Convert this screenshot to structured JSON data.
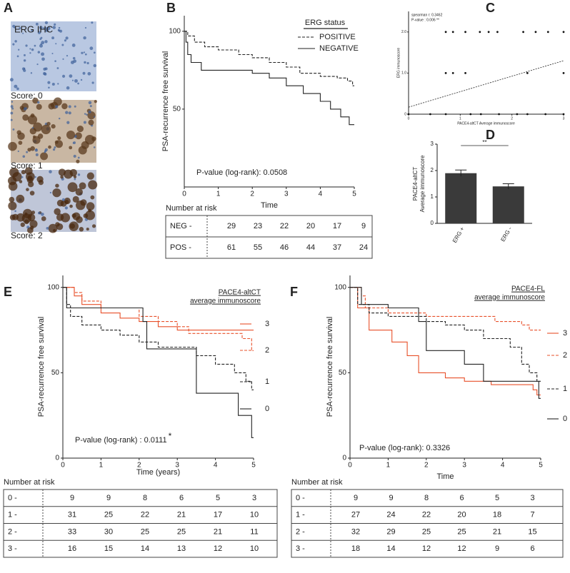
{
  "panel_labels": [
    "A",
    "B",
    "C",
    "D",
    "E",
    "F"
  ],
  "ihc": {
    "title": "ERG IHC",
    "scores": [
      "Score: 0",
      "Score: 1",
      "Score: 2"
    ]
  },
  "chart_data": [
    {
      "type": "km",
      "xlabel": "Time",
      "ylabel": "PSA-recurrence free survival",
      "legend_title": [
        "ERG status"
      ],
      "annotation": "P-value (log-rank): 0.0508",
      "xlim": [
        0,
        5
      ],
      "ylim": [
        0,
        110
      ],
      "xticks": [
        0,
        1,
        2,
        3,
        4,
        5
      ],
      "yticks": [
        50,
        100
      ],
      "series": [
        {
          "name": "POSITIVE",
          "color": "#222222",
          "style": "dashed",
          "x": [
            0,
            0.1,
            0.1,
            0.3,
            0.3,
            0.6,
            0.6,
            1,
            1,
            1.6,
            1.6,
            2,
            2,
            2.5,
            2.5,
            3,
            3,
            3.4,
            3.4,
            4,
            4,
            4.5,
            4.5,
            4.8,
            4.8,
            4.95,
            4.95,
            5
          ],
          "values": [
            100,
            100,
            97,
            97,
            93,
            93,
            90,
            90,
            88,
            88,
            85,
            85,
            83,
            83,
            80,
            80,
            77,
            77,
            73,
            73,
            71,
            71,
            70,
            70,
            68,
            68,
            65,
            65
          ]
        },
        {
          "name": "NEGATIVE",
          "color": "#222222",
          "style": "solid",
          "x": [
            0,
            0.05,
            0.05,
            0.1,
            0.1,
            0.2,
            0.2,
            0.5,
            0.5,
            2,
            2,
            2.5,
            2.5,
            3,
            3,
            3.5,
            3.5,
            4,
            4,
            4.3,
            4.3,
            4.6,
            4.6,
            4.85,
            4.85,
            5
          ],
          "values": [
            100,
            100,
            93,
            93,
            85,
            85,
            80,
            80,
            75,
            75,
            73,
            73,
            70,
            70,
            65,
            65,
            60,
            60,
            55,
            55,
            50,
            50,
            45,
            45,
            40,
            40
          ]
        }
      ]
    },
    {
      "type": "scatter",
      "xlabel": "PACE4-altCT Average immunoscore",
      "ylabel": "ERG immunoscore",
      "annotations": [
        "spearman r: 0.3462",
        "P-value : 0.006 **"
      ],
      "xlim": [
        0,
        3
      ],
      "ylim": [
        0,
        2.5
      ],
      "xticks": [
        0,
        1,
        2,
        3
      ],
      "yticks": [
        0,
        {
          "value": 1,
          "label": "1.0"
        },
        {
          "value": 2,
          "label": "2.0"
        }
      ],
      "series": [
        {
          "color": "#111111",
          "x": [
            0.72,
            0.86,
            1.1,
            1.38,
            1.55,
            1.72,
            2.22,
            2.46,
            2.7,
            3.0,
            0.72,
            0.86,
            1.1,
            2.3,
            3.0,
            0.0,
            0.42,
            0.72,
            1.2,
            1.4,
            1.75,
            2.1,
            2.3,
            2.65,
            3.0
          ],
          "values": [
            2,
            2,
            2,
            2,
            2,
            2,
            2,
            2,
            2,
            2,
            1,
            1,
            1,
            1,
            1,
            0,
            0,
            0,
            0,
            0,
            0,
            0,
            0,
            0,
            0
          ]
        }
      ],
      "fit": {
        "x": [
          0,
          3
        ],
        "values": [
          0.17,
          1.3
        ]
      }
    },
    {
      "type": "bar",
      "ylabel": [
        "PACE4-altCT",
        "Average immunoscore"
      ],
      "categories": [
        "ERG +",
        "ERG -"
      ],
      "values": [
        1.9,
        1.4
      ],
      "errors": [
        0.12,
        0.1
      ],
      "color": "#3a3a3a",
      "significance": "**",
      "ylim": [
        0,
        3
      ],
      "yticks": [
        0,
        1,
        2,
        3
      ]
    },
    {
      "type": "km",
      "xlabel": "Time (years)",
      "ylabel": "PSA-recurrence free survival",
      "legend_title": [
        "PACE4-altCT",
        "average immunoscore"
      ],
      "annotation": "P-value (log-rank) : 0.0111",
      "significance": "*",
      "xlim": [
        0,
        5
      ],
      "ylim": [
        0,
        107
      ],
      "xticks": [
        0,
        1,
        2,
        3,
        4,
        5
      ],
      "yticks": [
        0,
        50,
        100
      ],
      "series": [
        {
          "name": "3",
          "color": "#e8502a",
          "style": "solid",
          "x": [
            0,
            0.3,
            0.3,
            0.5,
            0.5,
            1,
            1,
            1.5,
            1.5,
            2,
            2,
            2.5,
            2.5,
            3,
            3,
            5
          ],
          "values": [
            100,
            100,
            95,
            95,
            90,
            90,
            85,
            85,
            82,
            82,
            80,
            80,
            77,
            77,
            75,
            75
          ]
        },
        {
          "name": "2",
          "color": "#e8502a",
          "style": "dashed",
          "x": [
            0,
            0.3,
            0.3,
            0.5,
            0.5,
            1,
            1,
            2,
            2,
            2.5,
            2.5,
            3,
            3,
            3.3,
            3.3,
            4.7,
            4.7,
            4.95,
            4.95,
            5
          ],
          "values": [
            100,
            100,
            97,
            97,
            92,
            92,
            88,
            88,
            83,
            83,
            80,
            80,
            77,
            77,
            73,
            73,
            70,
            70,
            63,
            63
          ]
        },
        {
          "name": "1",
          "color": "#222222",
          "style": "dashed",
          "x": [
            0,
            0.1,
            0.1,
            0.2,
            0.2,
            0.5,
            0.5,
            1,
            1,
            1.5,
            1.5,
            2,
            2,
            2.5,
            2.5,
            3.5,
            3.5,
            4,
            4,
            4.5,
            4.5,
            4.8,
            4.8,
            4.95,
            4.95,
            5
          ],
          "values": [
            100,
            100,
            90,
            90,
            83,
            83,
            78,
            78,
            75,
            75,
            72,
            72,
            68,
            68,
            65,
            65,
            60,
            60,
            55,
            55,
            50,
            50,
            45,
            45,
            40,
            40
          ]
        },
        {
          "name": "0",
          "color": "#222222",
          "style": "solid",
          "x": [
            0,
            0.1,
            0.1,
            2.1,
            2.1,
            2.2,
            2.2,
            3.5,
            3.5,
            4.6,
            4.6,
            4.95,
            4.95,
            5
          ],
          "values": [
            100,
            100,
            88,
            88,
            80,
            80,
            64,
            64,
            38,
            38,
            25,
            25,
            12,
            12
          ]
        }
      ]
    },
    {
      "type": "km",
      "xlabel": "Time",
      "ylabel": "PSA-recurrence free survival",
      "legend_title": [
        "PACE4-FL",
        "average immunoscore"
      ],
      "annotation": "P-value (log-rank): 0.3326",
      "xlim": [
        0,
        5
      ],
      "ylim": [
        0,
        107
      ],
      "xticks": [
        0,
        1,
        2,
        3,
        4,
        5
      ],
      "yticks": [
        0,
        50,
        100
      ],
      "series": [
        {
          "name": "3",
          "color": "#e8502a",
          "style": "solid",
          "x": [
            0,
            0.2,
            0.2,
            0.5,
            0.5,
            1.1,
            1.1,
            1.5,
            1.5,
            1.8,
            1.8,
            2.5,
            2.5,
            3,
            3,
            3.7,
            3.7,
            4.8,
            4.8,
            4.9,
            4.9,
            5
          ],
          "values": [
            100,
            100,
            88,
            88,
            75,
            75,
            68,
            68,
            60,
            60,
            50,
            50,
            47,
            47,
            45,
            45,
            43,
            43,
            40,
            40,
            37,
            37
          ]
        },
        {
          "name": "2",
          "color": "#e8502a",
          "style": "dashed",
          "x": [
            0,
            0.3,
            0.3,
            0.4,
            0.4,
            1,
            1,
            2,
            2,
            3.8,
            3.8,
            4.5,
            4.5,
            4.7,
            4.7,
            5
          ],
          "values": [
            100,
            100,
            95,
            95,
            88,
            88,
            85,
            85,
            83,
            83,
            80,
            80,
            78,
            78,
            75,
            75
          ]
        },
        {
          "name": "1",
          "color": "#222222",
          "style": "dashed",
          "x": [
            0,
            0.2,
            0.2,
            0.5,
            0.5,
            1,
            1,
            2,
            2,
            2.5,
            2.5,
            3,
            3,
            3.5,
            3.5,
            4.2,
            4.2,
            4.5,
            4.5,
            4.7,
            4.7,
            4.9,
            4.9,
            5
          ],
          "values": [
            100,
            100,
            90,
            90,
            85,
            85,
            83,
            83,
            80,
            80,
            78,
            78,
            75,
            75,
            70,
            70,
            65,
            65,
            55,
            55,
            50,
            50,
            45,
            45
          ]
        },
        {
          "name": "0",
          "color": "#222222",
          "style": "solid",
          "x": [
            0,
            0.3,
            0.3,
            1,
            1,
            1.8,
            1.8,
            2,
            2,
            3,
            3,
            3.5,
            3.5,
            4.95,
            4.95,
            5
          ],
          "values": [
            100,
            100,
            90,
            90,
            88,
            88,
            80,
            80,
            63,
            63,
            55,
            55,
            45,
            45,
            35,
            35
          ]
        }
      ]
    }
  ],
  "risk_tables": [
    {
      "title": "Number at risk",
      "rows": [
        {
          "label": "NEG -",
          "values": [
            29,
            23,
            22,
            20,
            17,
            9
          ]
        },
        {
          "label": "POS -",
          "values": [
            61,
            55,
            46,
            44,
            37,
            24
          ]
        }
      ]
    },
    {
      "title": "Number at risk",
      "rows": [
        {
          "label": "0 -",
          "values": [
            9,
            9,
            8,
            6,
            5,
            3
          ]
        },
        {
          "label": "1 -",
          "values": [
            31,
            25,
            22,
            21,
            17,
            10
          ]
        },
        {
          "label": "2 -",
          "values": [
            33,
            30,
            25,
            25,
            21,
            11
          ]
        },
        {
          "label": "3 -",
          "values": [
            16,
            15,
            14,
            13,
            12,
            10
          ]
        }
      ]
    },
    {
      "title": "Number at risk",
      "rows": [
        {
          "label": "0 -",
          "values": [
            9,
            9,
            8,
            6,
            5,
            3
          ]
        },
        {
          "label": "1 -",
          "values": [
            27,
            24,
            22,
            20,
            18,
            7
          ]
        },
        {
          "label": "2 -",
          "values": [
            32,
            29,
            25,
            25,
            21,
            15
          ]
        },
        {
          "label": "3 -",
          "values": [
            18,
            14,
            12,
            12,
            9,
            6
          ]
        }
      ]
    }
  ]
}
